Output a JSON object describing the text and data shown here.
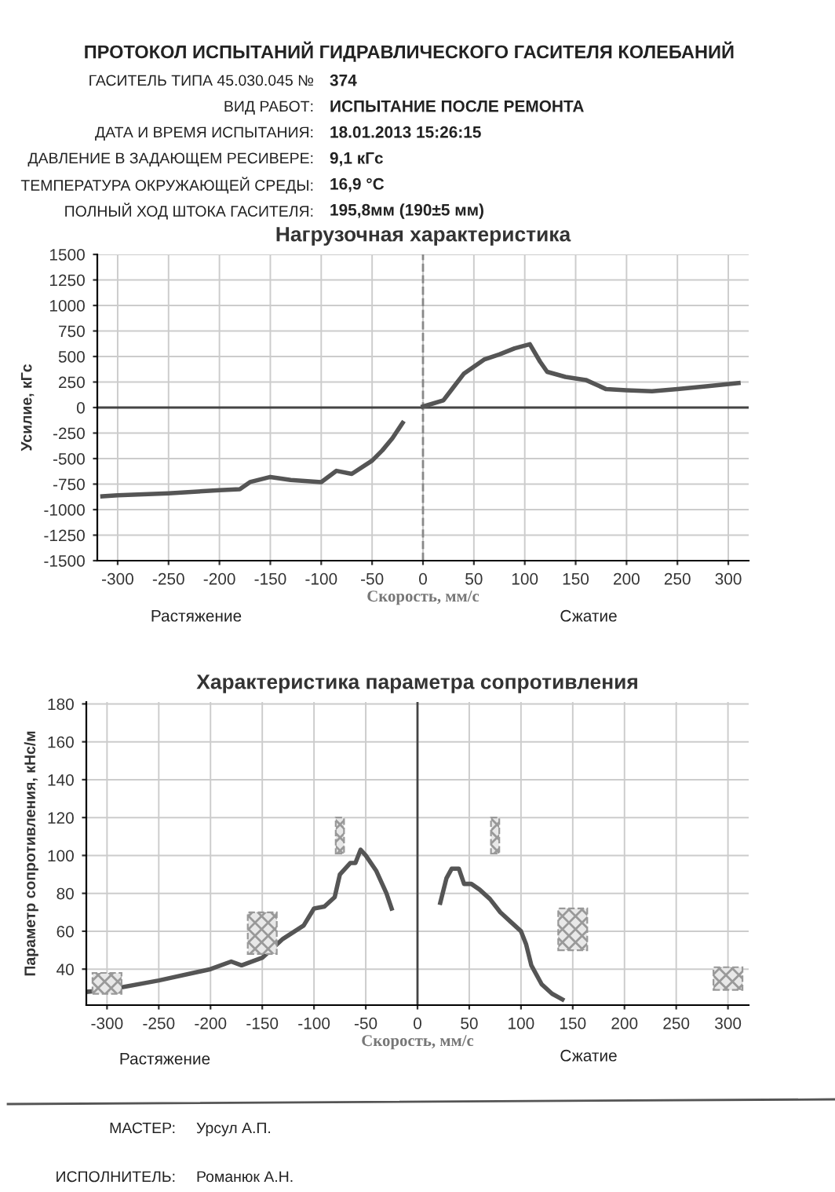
{
  "chart_data": [
    {
      "type": "line",
      "title": "Нагрузочная характеристика",
      "xlabel": "Скорость, мм/с",
      "ylabel": "Усилие, кГс",
      "xlim": [
        -320,
        320
      ],
      "xticks": [
        -300,
        -250,
        -200,
        -150,
        -100,
        -50,
        0,
        50,
        100,
        150,
        200,
        250,
        300
      ],
      "ylim": [
        -1500,
        1500
      ],
      "yticks": [
        -1500,
        -1250,
        -1000,
        -750,
        -500,
        -250,
        0,
        250,
        500,
        750,
        1000,
        1250,
        1500
      ],
      "grid": true,
      "marker": "none",
      "line_style": "solid",
      "ref_lines": [
        {
          "axis": "y",
          "value": 0,
          "color": "#444444",
          "line_style": "solid"
        },
        {
          "axis": "x",
          "value": 0,
          "color": "#888888",
          "line_style": "dashed"
        }
      ],
      "series": [
        {
          "color": "#555555",
          "x": [
            -315,
            -300,
            -250,
            -200,
            -180,
            -170,
            -150,
            -130,
            -100,
            -85,
            -70,
            -50,
            -40,
            -30,
            -20
          ],
          "values": [
            -870,
            -860,
            -840,
            -810,
            -800,
            -730,
            -680,
            -710,
            -730,
            -620,
            -650,
            -520,
            -420,
            -300,
            -150
          ]
        },
        {
          "color": "#555555",
          "x": [
            0,
            20,
            30,
            40,
            50,
            60,
            75,
            90,
            105,
            115,
            122,
            140,
            160,
            180,
            200,
            225,
            250,
            280,
            310
          ],
          "values": [
            10,
            70,
            200,
            330,
            400,
            470,
            520,
            580,
            620,
            450,
            350,
            300,
            270,
            180,
            170,
            160,
            180,
            210,
            240
          ]
        }
      ],
      "annotations": [
        "ПРОТОКОЛ ИСПЫТАНИЙ ГИДРАВЛИЧЕСКОГО ГАСИТЕЛЯ КОЛЕБАНИЙ",
        "ГАСИТЕЛЬ ТИПА 45.030.045 №",
        "374",
        "ВИД РАБОТ:",
        "ИСПЫТАНИЕ ПОСЛЕ РЕМОНТА",
        "ДАТА И ВРЕМЯ ИСПЫТАНИЯ:",
        "18.01.2013 15:26:15",
        "ДАВЛЕНИЕ В ЗАДАЮЩЕМ РЕСИВЕРЕ:",
        "9,1 кГс",
        "ТЕМПЕРАТУРА ОКРУЖАЮЩЕЙ СРЕДЫ:",
        "16,9 °C",
        "ПОЛНЫЙ ХОД ШТОКА ГАСИТЕЛЯ:",
        "195,8мм (190±5 мм)",
        "Растяжение",
        "Сжатие"
      ]
    },
    {
      "type": "line",
      "title": "Характеристика параметра сопротивления",
      "xlabel": "Скорость, мм/с",
      "ylabel": "Параметр сопротивления, кНс/м",
      "xlim": [
        -320,
        320
      ],
      "xticks": [
        -300,
        -250,
        -200,
        -150,
        -100,
        -50,
        0,
        50,
        100,
        150,
        200,
        250,
        300
      ],
      "ylim": [
        21,
        181
      ],
      "yticks": [
        40,
        60,
        80,
        100,
        120,
        140,
        160,
        180
      ],
      "grid": true,
      "marker": "none",
      "line_style": "solid",
      "ref_lines": [
        {
          "axis": "x",
          "value": 0,
          "color": "#444444",
          "line_style": "solid"
        }
      ],
      "series": [
        {
          "type": "bar",
          "color": "#999999",
          "x": [
            -300,
            -150,
            -75,
            75,
            150,
            300
          ],
          "base": [
            27,
            48,
            101,
            101,
            50,
            29
          ],
          "values": [
            11,
            22,
            19,
            19,
            22,
            12
          ]
        },
        {
          "color": "#555555",
          "x": [
            -320,
            -300,
            -250,
            -200,
            -180,
            -170,
            -150,
            -130,
            -110,
            -100,
            -90,
            -80,
            -75,
            -65,
            -60,
            -55,
            -50,
            -40,
            -30,
            -25
          ],
          "values": [
            28,
            29,
            34,
            40,
            44,
            42,
            46,
            56,
            63,
            72,
            73,
            78,
            90,
            96,
            96,
            103,
            100,
            92,
            80,
            72
          ]
        },
        {
          "color": "#555555",
          "x": [
            22,
            28,
            33,
            40,
            45,
            52,
            60,
            70,
            80,
            90,
            100,
            105,
            110,
            120,
            130,
            140
          ],
          "values": [
            75,
            88,
            93,
            93,
            85,
            85,
            82,
            77,
            70,
            65,
            60,
            53,
            42,
            32,
            27,
            24
          ]
        }
      ],
      "annotations": [
        "Растяжение",
        "Сжатие",
        "МАСТЕР:",
        "Урсул А.П.",
        "ИСПОЛНИТЕЛЬ:",
        "Романюк А.Н."
      ]
    }
  ]
}
